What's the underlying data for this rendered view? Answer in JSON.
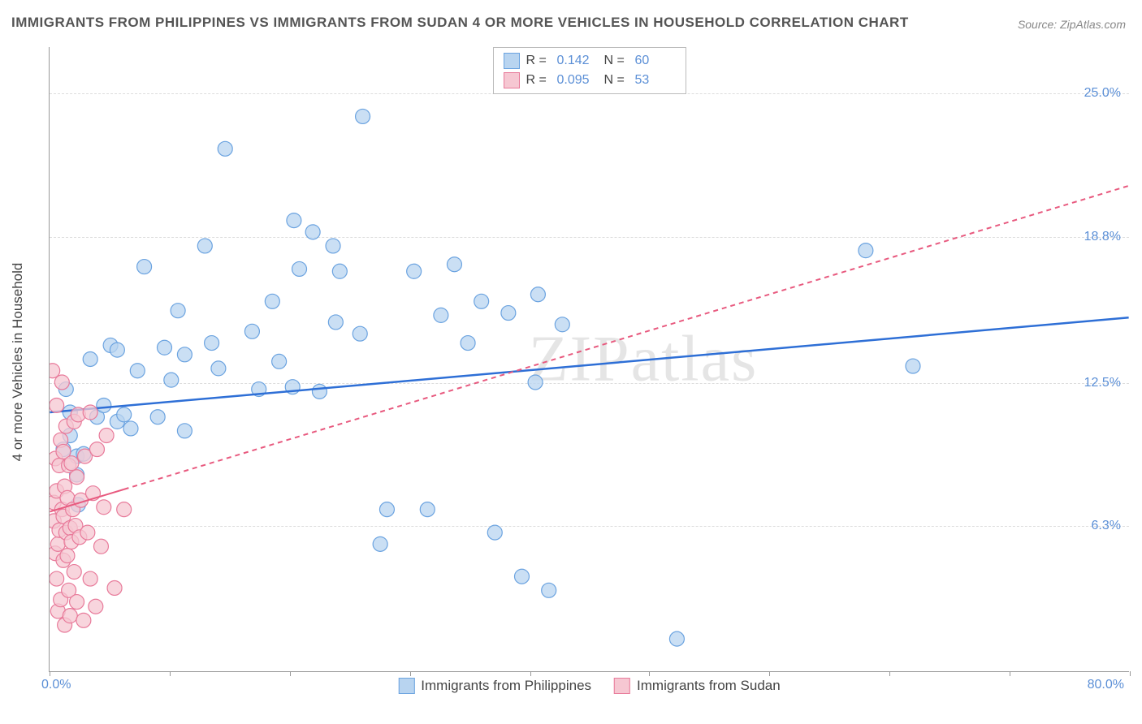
{
  "chart": {
    "type": "scatter",
    "title": "IMMIGRANTS FROM PHILIPPINES VS IMMIGRANTS FROM SUDAN 4 OR MORE VEHICLES IN HOUSEHOLD CORRELATION CHART",
    "source": "Source: ZipAtlas.com",
    "watermark": "ZIPatlas",
    "ylabel": "4 or more Vehicles in Household",
    "xlim": [
      0,
      80
    ],
    "ylim": [
      0,
      27
    ],
    "x_min_label": "0.0%",
    "x_max_label": "80.0%",
    "x_tick_positions": [
      0,
      8.9,
      17.8,
      26.7,
      35.6,
      44.4,
      53.3,
      62.2,
      71.1,
      80
    ],
    "y_ticks": [
      6.3,
      12.5,
      18.8,
      25.0
    ],
    "y_tick_labels": [
      "6.3%",
      "12.5%",
      "18.8%",
      "25.0%"
    ],
    "grid_color": "#dddddd",
    "background_color": "#ffffff",
    "axis_color": "#999999",
    "tick_label_color": "#5b8fd6",
    "legend_stats": {
      "series1": {
        "R_label": "R =",
        "R": "0.142",
        "N_label": "N =",
        "N": "60"
      },
      "series2": {
        "R_label": "R =",
        "R": "0.095",
        "N_label": "N =",
        "N": "53"
      }
    },
    "legend_bottom": {
      "series1_label": "Immigrants from Philippines",
      "series2_label": "Immigrants from Sudan"
    },
    "series": [
      {
        "name": "philippines",
        "marker_fill": "#b8d4f0",
        "marker_stroke": "#6ba3e0",
        "marker_radius": 9,
        "marker_opacity": 0.75,
        "trend_color": "#2e6fd6",
        "trend_width": 2.5,
        "trend_dash": "none",
        "trend_line": {
          "x1": 0,
          "y1": 11.2,
          "x2": 80,
          "y2": 15.3
        },
        "points": [
          [
            1.0,
            9.6
          ],
          [
            1.2,
            12.2
          ],
          [
            1.5,
            10.2
          ],
          [
            1.5,
            11.2
          ],
          [
            2.0,
            9.3
          ],
          [
            2.0,
            8.5
          ],
          [
            2.1,
            7.2
          ],
          [
            2.5,
            9.4
          ],
          [
            3.0,
            13.5
          ],
          [
            3.5,
            11.0
          ],
          [
            4.0,
            11.5
          ],
          [
            4.5,
            14.1
          ],
          [
            5.0,
            10.8
          ],
          [
            5.5,
            11.1
          ],
          [
            5.0,
            13.9
          ],
          [
            6.0,
            10.5
          ],
          [
            6.5,
            13.0
          ],
          [
            7.0,
            17.5
          ],
          [
            8.0,
            11.0
          ],
          [
            8.5,
            14.0
          ],
          [
            9.0,
            12.6
          ],
          [
            9.5,
            15.6
          ],
          [
            10.0,
            10.4
          ],
          [
            10.0,
            13.7
          ],
          [
            11.5,
            18.4
          ],
          [
            12.0,
            14.2
          ],
          [
            12.5,
            13.1
          ],
          [
            13.0,
            22.6
          ],
          [
            15.0,
            14.7
          ],
          [
            15.5,
            12.2
          ],
          [
            16.5,
            16.0
          ],
          [
            17.0,
            13.4
          ],
          [
            18.1,
            19.5
          ],
          [
            18.5,
            17.4
          ],
          [
            18.0,
            12.3
          ],
          [
            19.5,
            19.0
          ],
          [
            20.0,
            12.1
          ],
          [
            21.0,
            18.4
          ],
          [
            21.2,
            15.1
          ],
          [
            21.5,
            17.3
          ],
          [
            23.0,
            14.6
          ],
          [
            23.2,
            24.0
          ],
          [
            24.5,
            5.5
          ],
          [
            25.0,
            7.0
          ],
          [
            27.0,
            17.3
          ],
          [
            28.0,
            7.0
          ],
          [
            29.0,
            15.4
          ],
          [
            30.0,
            17.6
          ],
          [
            31.0,
            14.2
          ],
          [
            32.0,
            16.0
          ],
          [
            33.0,
            6.0
          ],
          [
            34.0,
            15.5
          ],
          [
            35.0,
            4.1
          ],
          [
            36.0,
            12.5
          ],
          [
            36.2,
            16.3
          ],
          [
            37.0,
            3.5
          ],
          [
            38.0,
            15.0
          ],
          [
            46.5,
            1.4
          ],
          [
            60.5,
            18.2
          ],
          [
            64.0,
            13.2
          ]
        ]
      },
      {
        "name": "sudan",
        "marker_fill": "#f6c7d2",
        "marker_stroke": "#e87a9a",
        "marker_radius": 9,
        "marker_opacity": 0.75,
        "trend_color": "#e85a7f",
        "trend_width": 2,
        "trend_dash": "6,5",
        "trend_solid_until_x": 5.5,
        "trend_line": {
          "x1": 0,
          "y1": 6.9,
          "x2": 80,
          "y2": 21.0
        },
        "points": [
          [
            0.2,
            13.0
          ],
          [
            0.3,
            6.5
          ],
          [
            0.3,
            7.3
          ],
          [
            0.4,
            5.1
          ],
          [
            0.4,
            9.2
          ],
          [
            0.5,
            4.0
          ],
          [
            0.5,
            11.5
          ],
          [
            0.5,
            7.8
          ],
          [
            0.6,
            2.6
          ],
          [
            0.6,
            5.5
          ],
          [
            0.7,
            8.9
          ],
          [
            0.7,
            6.1
          ],
          [
            0.8,
            10.0
          ],
          [
            0.8,
            3.1
          ],
          [
            0.9,
            7.0
          ],
          [
            0.9,
            12.5
          ],
          [
            1.0,
            4.8
          ],
          [
            1.0,
            6.7
          ],
          [
            1.0,
            9.5
          ],
          [
            1.1,
            2.0
          ],
          [
            1.1,
            8.0
          ],
          [
            1.2,
            6.0
          ],
          [
            1.2,
            10.6
          ],
          [
            1.3,
            5.0
          ],
          [
            1.3,
            7.5
          ],
          [
            1.4,
            3.5
          ],
          [
            1.4,
            8.9
          ],
          [
            1.5,
            6.2
          ],
          [
            1.5,
            2.4
          ],
          [
            1.6,
            9.0
          ],
          [
            1.6,
            5.6
          ],
          [
            1.7,
            7.0
          ],
          [
            1.8,
            4.3
          ],
          [
            1.8,
            10.8
          ],
          [
            1.9,
            6.3
          ],
          [
            2.0,
            8.4
          ],
          [
            2.0,
            3.0
          ],
          [
            2.1,
            11.1
          ],
          [
            2.2,
            5.8
          ],
          [
            2.3,
            7.4
          ],
          [
            2.5,
            2.2
          ],
          [
            2.6,
            9.3
          ],
          [
            2.8,
            6.0
          ],
          [
            3.0,
            4.0
          ],
          [
            3.0,
            11.2
          ],
          [
            3.2,
            7.7
          ],
          [
            3.4,
            2.8
          ],
          [
            3.5,
            9.6
          ],
          [
            3.8,
            5.4
          ],
          [
            4.0,
            7.1
          ],
          [
            4.2,
            10.2
          ],
          [
            4.8,
            3.6
          ],
          [
            5.5,
            7.0
          ]
        ]
      }
    ]
  }
}
